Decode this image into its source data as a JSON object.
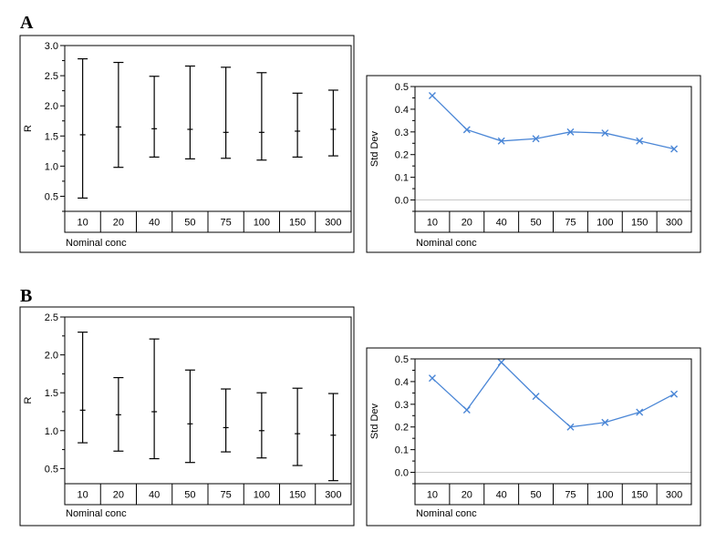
{
  "panels": [
    {
      "label": "A"
    },
    {
      "label": "B"
    }
  ],
  "colors": {
    "line": "#4a86d6",
    "frame": "#000000",
    "zero_line": "#c8c8c8",
    "background": "#ffffff"
  },
  "chart_data": [
    {
      "type": "errorbar",
      "panel": "A",
      "categories": [
        "10",
        "20",
        "40",
        "50",
        "75",
        "100",
        "150",
        "300"
      ],
      "mean": [
        1.52,
        1.65,
        1.62,
        1.61,
        1.56,
        1.56,
        1.58,
        1.61
      ],
      "low": [
        0.47,
        0.98,
        1.15,
        1.12,
        1.13,
        1.1,
        1.15,
        1.17
      ],
      "high": [
        2.78,
        2.72,
        2.49,
        2.66,
        2.64,
        2.55,
        2.21,
        2.26
      ],
      "xlabel": "Nominal conc",
      "ylabel": "R",
      "ylim": [
        0.25,
        3.0
      ],
      "yticks": [
        "0.5",
        "1.0",
        "1.5",
        "2.0",
        "2.5",
        "3.0"
      ],
      "grid": false,
      "legend": "none"
    },
    {
      "type": "line",
      "panel": "A",
      "categories": [
        "10",
        "20",
        "40",
        "50",
        "75",
        "100",
        "150",
        "300"
      ],
      "values": [
        0.46,
        0.31,
        0.26,
        0.27,
        0.3,
        0.295,
        0.26,
        0.225
      ],
      "xlabel": "Nominal conc",
      "ylabel": "Std Dev",
      "ylim": [
        -0.05,
        0.5
      ],
      "yticks": [
        "0.0",
        "0.1",
        "0.2",
        "0.3",
        "0.4",
        "0.5"
      ],
      "reference_line": 0,
      "marker": "x",
      "grid": false,
      "legend": "none"
    },
    {
      "type": "errorbar",
      "panel": "B",
      "categories": [
        "10",
        "20",
        "40",
        "50",
        "75",
        "100",
        "150",
        "300"
      ],
      "mean": [
        1.27,
        1.21,
        1.25,
        1.09,
        1.04,
        1.0,
        0.96,
        0.94
      ],
      "low": [
        0.84,
        0.73,
        0.63,
        0.58,
        0.72,
        0.64,
        0.54,
        0.34
      ],
      "high": [
        2.3,
        1.7,
        2.21,
        1.8,
        1.55,
        1.5,
        1.56,
        1.49
      ],
      "xlabel": "Nominal conc",
      "ylabel": "R",
      "ylim": [
        0.3,
        2.5
      ],
      "yticks": [
        "0.5",
        "1.0",
        "1.5",
        "2.0",
        "2.5"
      ],
      "grid": false,
      "legend": "none"
    },
    {
      "type": "line",
      "panel": "B",
      "categories": [
        "10",
        "20",
        "40",
        "50",
        "75",
        "100",
        "150",
        "300"
      ],
      "values": [
        0.415,
        0.275,
        0.485,
        0.335,
        0.2,
        0.22,
        0.265,
        0.345
      ],
      "xlabel": "Nominal conc",
      "ylabel": "Std Dev",
      "ylim": [
        -0.05,
        0.5
      ],
      "yticks": [
        "0.0",
        "0.1",
        "0.2",
        "0.3",
        "0.4",
        "0.5"
      ],
      "reference_line": 0,
      "marker": "x",
      "grid": false,
      "legend": "none"
    }
  ]
}
